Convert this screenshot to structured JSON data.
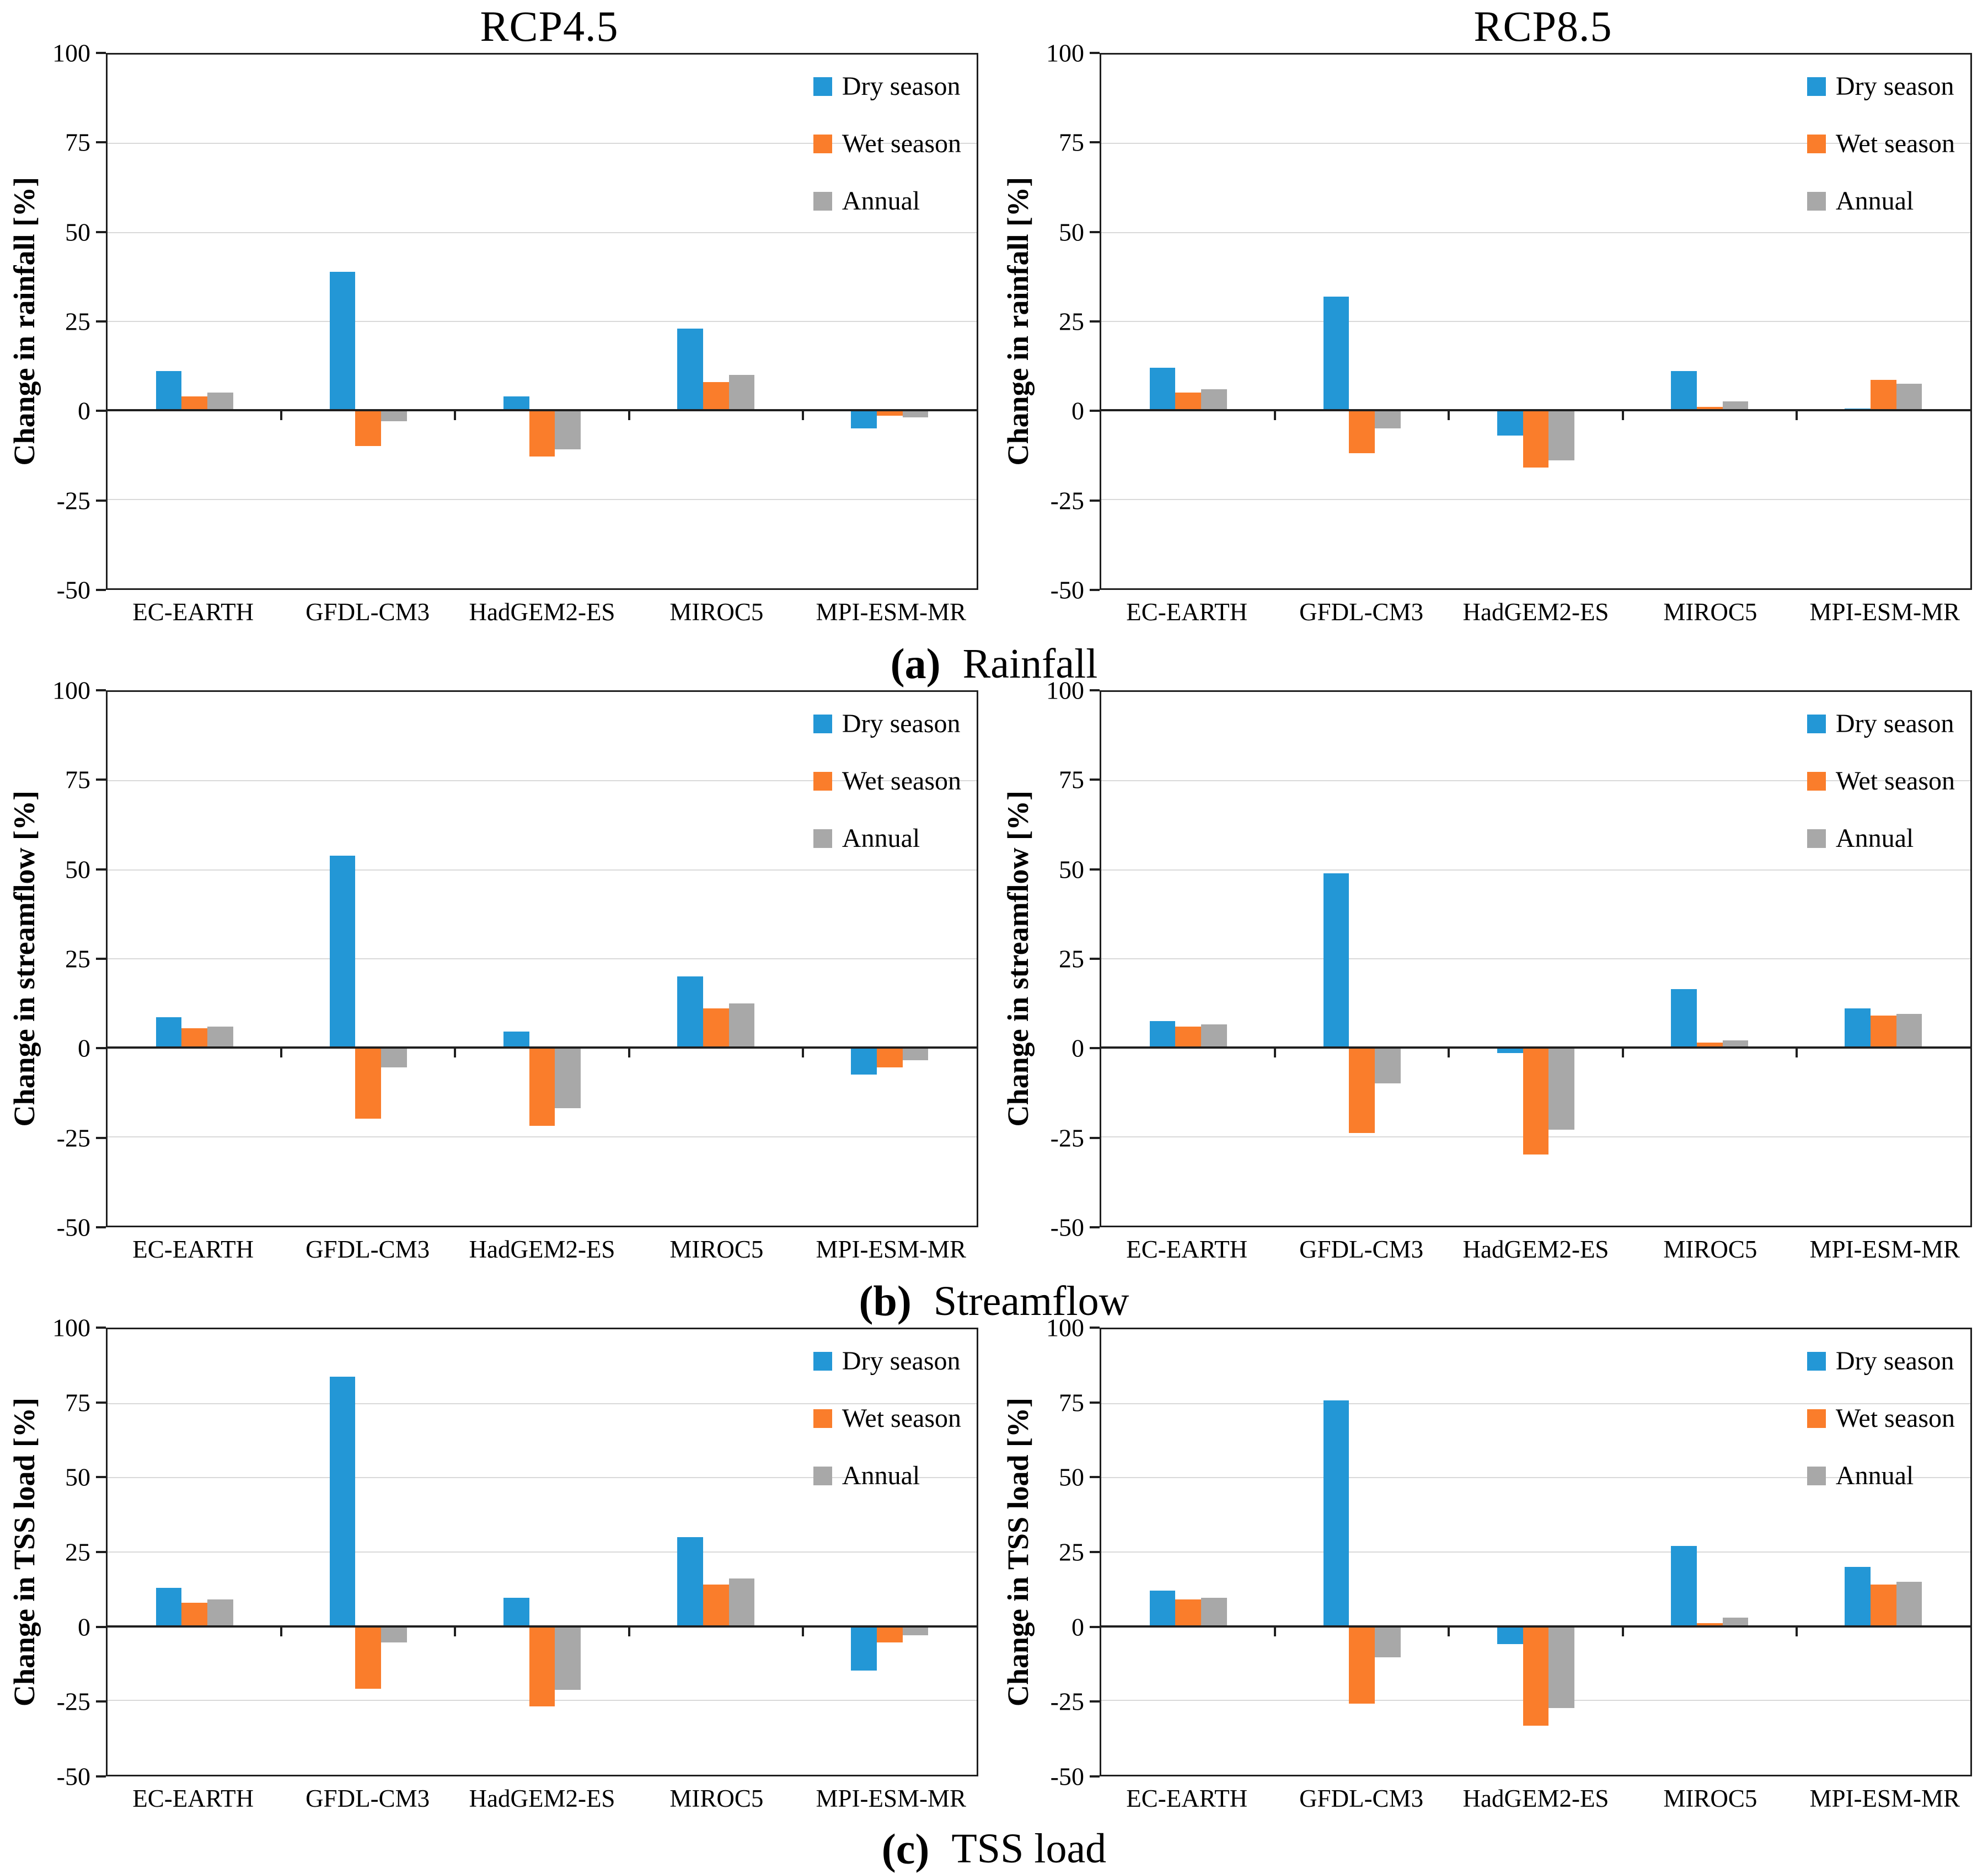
{
  "figure": {
    "column_titles": [
      "RCP4.5",
      "RCP8.5"
    ],
    "captions": [
      {
        "tag": "(a)",
        "label": "Rainfall"
      },
      {
        "tag": "(b)",
        "label": "Streamflow"
      },
      {
        "tag": "(c)",
        "label": "TSS load"
      }
    ]
  },
  "colors": {
    "dry": "#2397d6",
    "wet": "#fa7d2b",
    "annual": "#a8a8a8",
    "gridline": "#d9d9d9",
    "axis": "#1f1f1f"
  },
  "chart_data": [
    {
      "type": "bar",
      "panel": "Rainfall",
      "scenario": "RCP4.5",
      "ylabel": "Change in rainfall [%]",
      "ylim": [
        -50,
        100
      ],
      "yticks": [
        100,
        75,
        50,
        25,
        0,
        -25,
        -50
      ],
      "grid": true,
      "legend_position": "top-right",
      "categories": [
        "EC-EARTH",
        "GFDL-CM3",
        "HadGEM2-ES",
        "MIROC5",
        "MPI-ESM-MR"
      ],
      "series": [
        {
          "name": "Dry season",
          "color_key": "dry",
          "values": [
            11,
            39,
            4,
            23,
            -5
          ]
        },
        {
          "name": "Wet season",
          "color_key": "wet",
          "values": [
            4,
            -10,
            -13,
            8,
            -1.5
          ]
        },
        {
          "name": "Annual",
          "color_key": "annual",
          "values": [
            5,
            -3,
            -11,
            10,
            -2
          ]
        }
      ]
    },
    {
      "type": "bar",
      "panel": "Rainfall",
      "scenario": "RCP8.5",
      "ylabel": "Change in rainfall [%]",
      "ylim": [
        -50,
        100
      ],
      "yticks": [
        100,
        75,
        50,
        25,
        0,
        -25,
        -50
      ],
      "grid": true,
      "legend_position": "top-right",
      "categories": [
        "EC-EARTH",
        "GFDL-CM3",
        "HadGEM2-ES",
        "MIROC5",
        "MPI-ESM-MR"
      ],
      "series": [
        {
          "name": "Dry season",
          "color_key": "dry",
          "values": [
            12,
            32,
            -7,
            11,
            0.5
          ]
        },
        {
          "name": "Wet season",
          "color_key": "wet",
          "values": [
            5,
            -12,
            -16,
            1,
            8.5
          ]
        },
        {
          "name": "Annual",
          "color_key": "annual",
          "values": [
            6,
            -5,
            -14,
            2.5,
            7.5
          ]
        }
      ]
    },
    {
      "type": "bar",
      "panel": "Streamflow",
      "scenario": "RCP4.5",
      "ylabel": "Change in streamflow [%]",
      "ylim": [
        -50,
        100
      ],
      "yticks": [
        100,
        75,
        50,
        25,
        0,
        -25,
        -50
      ],
      "grid": true,
      "legend_position": "top-right",
      "categories": [
        "EC-EARTH",
        "GFDL-CM3",
        "HadGEM2-ES",
        "MIROC5",
        "MPI-ESM-MR"
      ],
      "series": [
        {
          "name": "Dry season",
          "color_key": "dry",
          "values": [
            8.5,
            54,
            4.5,
            20,
            -7.5
          ]
        },
        {
          "name": "Wet season",
          "color_key": "wet",
          "values": [
            5.5,
            -20,
            -22,
            11,
            -5.5
          ]
        },
        {
          "name": "Annual",
          "color_key": "annual",
          "values": [
            6,
            -5.5,
            -17,
            12.5,
            -3.5
          ]
        }
      ]
    },
    {
      "type": "bar",
      "panel": "Streamflow",
      "scenario": "RCP8.5",
      "ylabel": "Change in streamflow [%]",
      "ylim": [
        -50,
        100
      ],
      "yticks": [
        100,
        75,
        50,
        25,
        0,
        -25,
        -50
      ],
      "grid": true,
      "legend_position": "top-right",
      "categories": [
        "EC-EARTH",
        "GFDL-CM3",
        "HadGEM2-ES",
        "MIROC5",
        "MPI-ESM-MR"
      ],
      "series": [
        {
          "name": "Dry season",
          "color_key": "dry",
          "values": [
            7.5,
            49,
            -1.5,
            16.5,
            11
          ]
        },
        {
          "name": "Wet season",
          "color_key": "wet",
          "values": [
            6,
            -24,
            -30,
            1.5,
            9
          ]
        },
        {
          "name": "Annual",
          "color_key": "annual",
          "values": [
            6.5,
            -10,
            -23,
            2,
            9.5
          ]
        }
      ]
    },
    {
      "type": "bar",
      "panel": "TSS load",
      "scenario": "RCP4.5",
      "ylabel": "Change in TSS load [%]",
      "ylim": [
        -50,
        100
      ],
      "yticks": [
        100,
        75,
        50,
        25,
        0,
        -25,
        -50
      ],
      "grid": true,
      "legend_position": "top-right",
      "categories": [
        "EC-EARTH",
        "GFDL-CM3",
        "HadGEM2-ES",
        "MIROC5",
        "MPI-ESM-MR"
      ],
      "series": [
        {
          "name": "Dry season",
          "color_key": "dry",
          "values": [
            13,
            84,
            9.5,
            30,
            -15
          ]
        },
        {
          "name": "Wet season",
          "color_key": "wet",
          "values": [
            8,
            -21,
            -27,
            14,
            -5.5
          ]
        },
        {
          "name": "Annual",
          "color_key": "annual",
          "values": [
            9,
            -5.5,
            -21.5,
            16,
            -3
          ]
        }
      ]
    },
    {
      "type": "bar",
      "panel": "TSS load",
      "scenario": "RCP8.5",
      "ylabel": "Change in TSS load [%]",
      "ylim": [
        -50,
        100
      ],
      "yticks": [
        100,
        75,
        50,
        25,
        0,
        -25,
        -50
      ],
      "grid": true,
      "legend_position": "top-right",
      "categories": [
        "EC-EARTH",
        "GFDL-CM3",
        "HadGEM2-ES",
        "MIROC5",
        "MPI-ESM-MR"
      ],
      "series": [
        {
          "name": "Dry season",
          "color_key": "dry",
          "values": [
            12,
            76,
            -6,
            27,
            20
          ]
        },
        {
          "name": "Wet season",
          "color_key": "wet",
          "values": [
            9,
            -26,
            -33.5,
            1,
            14
          ]
        },
        {
          "name": "Annual",
          "color_key": "annual",
          "values": [
            9.5,
            -10.5,
            -27.5,
            3,
            15
          ]
        }
      ]
    }
  ]
}
